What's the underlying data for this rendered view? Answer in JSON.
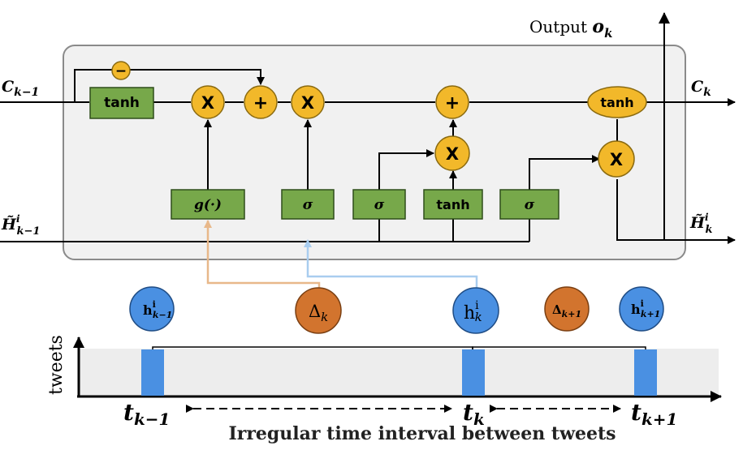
{
  "output_label": {
    "prefix": "Output ",
    "symbol": "o",
    "sub": "k"
  },
  "cell_in_label": {
    "symbol": "C",
    "sub": "k−1"
  },
  "cell_out_label": {
    "symbol": "C",
    "sub": "k"
  },
  "hidden_in_label": {
    "symbol": "H̃",
    "sup": "i",
    "sub": "k−1"
  },
  "hidden_out_label": {
    "symbol": "H̃",
    "sup": "i",
    "sub": "k"
  },
  "ops": {
    "minus": "−",
    "plus": "+",
    "times": "X",
    "tanh": "tanh",
    "sigma": "σ",
    "g": "g(·)"
  },
  "inputs": {
    "h_prev": {
      "symbol": "h",
      "sup": "i",
      "sub": "k−1"
    },
    "delta_k": {
      "symbol": "Δ",
      "sub": "k"
    },
    "h_curr": {
      "symbol": "h",
      "sup": "i",
      "sub": "k"
    },
    "delta_next": {
      "symbol": "Δ",
      "sub": "k+1"
    },
    "h_next": {
      "symbol": "h",
      "sup": "i",
      "sub": "k+1"
    }
  },
  "timeline": {
    "y_axis_label": "tweets",
    "t_prev": {
      "symbol": "t",
      "sub": "k−1"
    },
    "t_curr": {
      "symbol": "t",
      "sub": "k"
    },
    "t_next": {
      "symbol": "t",
      "sub": "k+1"
    },
    "caption": "Irregular time interval between tweets"
  },
  "colors": {
    "gate_green": "#77a84a",
    "gate_border": "#2f4e1a",
    "op_yellow": "#f2b82a",
    "op_border": "#8a6a10",
    "node_blue": "#4a90e2",
    "node_orange": "#d2742e",
    "tweet_bar": "#4a90e2",
    "arrow_orange": "#e8b88a",
    "arrow_blue": "#a9cdef",
    "panel_fill": "#f1f1f1",
    "panel_border": "#8a8a8a"
  }
}
